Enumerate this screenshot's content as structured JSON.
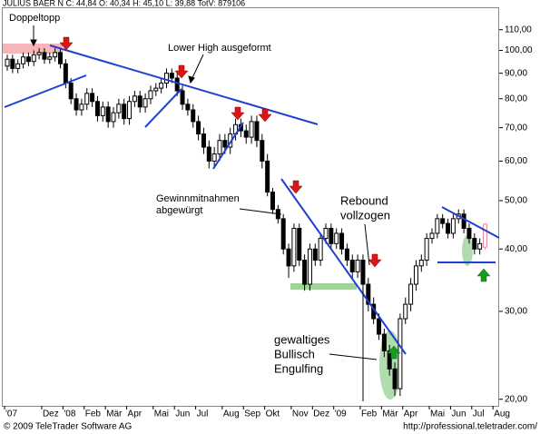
{
  "chart_data": {
    "type": "candlestick",
    "header": "JULIUS BAER N C: 44,84 O: 40,34 H: 45,10 L: 39,88 TotV: 879106",
    "footer_left": "© 2009 TeleTrader Software AG",
    "footer_right": "http://professional.teletrader.com/",
    "log_scale": true,
    "ylim": [
      19.4,
      122
    ],
    "yticks": [
      {
        "value": 20,
        "label": "20,00"
      },
      {
        "value": 30,
        "label": "30,00"
      },
      {
        "value": 40,
        "label": "40,00"
      },
      {
        "value": 50,
        "label": "50,00"
      },
      {
        "value": 60,
        "label": "60,00"
      },
      {
        "value": 70,
        "label": "70,00"
      },
      {
        "value": 80,
        "label": "80,00"
      },
      {
        "value": 90,
        "label": "90,00"
      },
      {
        "value": 100,
        "label": "100,00"
      },
      {
        "value": 110,
        "label": "110,00"
      }
    ],
    "up_color": "#ffffff",
    "down_color": "#000000",
    "last_color": "#e88ca0",
    "categories": [
      "'07",
      null,
      null,
      null,
      null,
      null,
      null,
      "Dez",
      null,
      null,
      null,
      "'08",
      null,
      null,
      null,
      "Feb",
      null,
      null,
      null,
      "Mär",
      null,
      null,
      null,
      "Apr",
      null,
      null,
      null,
      null,
      "Mai",
      null,
      null,
      null,
      "Jun",
      null,
      null,
      null,
      "Jul",
      null,
      null,
      null,
      null,
      "Aug",
      null,
      null,
      null,
      "Sep",
      null,
      null,
      null,
      "Okt",
      null,
      null,
      null,
      null,
      "Nov",
      null,
      null,
      null,
      "Dez",
      null,
      null,
      null,
      "'09",
      null,
      null,
      null,
      null,
      "Feb",
      null,
      null,
      null,
      "Mär",
      null,
      null,
      null,
      "Apr",
      null,
      null,
      null,
      null,
      "Mai",
      null,
      null,
      null,
      "Jun",
      null,
      null,
      null,
      "Jul",
      null,
      null,
      null,
      "Aug"
    ],
    "open": [
      93,
      96,
      92,
      94,
      97,
      95,
      98,
      99,
      96,
      97,
      99,
      94,
      86,
      80,
      76,
      78,
      82,
      79,
      74,
      77,
      72,
      75,
      78,
      73,
      79,
      81,
      77,
      80,
      83,
      84,
      86,
      90,
      88,
      83,
      78,
      76,
      72,
      68,
      64,
      60,
      62,
      66,
      64,
      68,
      71,
      69,
      67,
      72,
      66,
      60,
      52,
      48,
      46,
      40,
      37,
      44,
      38,
      34,
      40,
      38,
      42,
      44,
      41,
      43,
      40,
      38,
      36,
      38,
      34,
      31,
      29,
      27,
      25,
      23,
      21,
      29,
      31,
      34,
      37,
      38,
      42,
      43,
      46,
      45,
      43,
      46,
      47,
      44,
      42,
      40,
      40.34,
      null,
      null
    ],
    "high": [
      98,
      98,
      96,
      99,
      99,
      100,
      101,
      101,
      99,
      101,
      101,
      96,
      88,
      82,
      80,
      84,
      84,
      81,
      79,
      79,
      77,
      80,
      80,
      81,
      83,
      83,
      82,
      85,
      86,
      88,
      92,
      92,
      90,
      85,
      80,
      78,
      74,
      70,
      66,
      64,
      68,
      68,
      70,
      73,
      73,
      71,
      74,
      74,
      68,
      62,
      53,
      49,
      47,
      41,
      45,
      45,
      39,
      41,
      41,
      43,
      45,
      45,
      44,
      44,
      41,
      39,
      39,
      39,
      35,
      32,
      29.7,
      27.7,
      25.7,
      23.7,
      29.7,
      32,
      35,
      38,
      39,
      43,
      44,
      47,
      47,
      46,
      47,
      48,
      48,
      45,
      43,
      42,
      45.1,
      null,
      null
    ],
    "low": [
      91,
      90,
      90,
      92,
      93,
      93,
      96,
      94,
      94,
      95,
      92,
      84,
      78,
      74,
      74,
      76,
      77,
      72,
      72,
      70,
      70,
      73,
      71,
      71,
      77,
      75,
      75,
      78,
      81,
      82,
      84,
      86,
      81,
      76,
      74,
      70,
      66,
      62,
      58,
      58,
      60,
      62,
      62,
      66,
      67,
      65,
      65,
      64,
      58,
      51,
      47,
      45,
      39,
      35,
      36,
      37,
      33,
      33,
      37,
      37,
      41,
      40,
      40,
      39,
      37,
      35,
      35,
      33,
      30,
      28.3,
      26.3,
      24.3,
      22.3,
      20.3,
      20.3,
      28.3,
      30,
      33,
      36,
      37,
      41,
      42,
      44,
      42,
      42,
      45,
      43,
      41,
      39,
      39,
      39.88,
      null,
      null
    ],
    "close": [
      96,
      92,
      94,
      97,
      95,
      98,
      99,
      96,
      97,
      99,
      94,
      86,
      80,
      76,
      78,
      82,
      79,
      74,
      77,
      72,
      75,
      78,
      73,
      79,
      81,
      77,
      80,
      83,
      84,
      86,
      90,
      88,
      83,
      78,
      76,
      72,
      68,
      64,
      60,
      62,
      66,
      64,
      68,
      71,
      69,
      67,
      72,
      66,
      60,
      52,
      48,
      46,
      40,
      37,
      44,
      38,
      34,
      40,
      38,
      42,
      44,
      41,
      43,
      40,
      38,
      36,
      38,
      34,
      31,
      29,
      27,
      25,
      23,
      21,
      29,
      31,
      34,
      37,
      38,
      42,
      43,
      46,
      45,
      43,
      46,
      47,
      44,
      42,
      40,
      41,
      44.84,
      null,
      null
    ],
    "annotations": [
      [
        "Doppeltopp"
      ],
      [
        "Lower High ausgeformt"
      ],
      [
        "Gewinnmitnahmen",
        "abgewürgt"
      ],
      [
        "Rebound",
        "vollzogen"
      ],
      [
        "gewaltiges",
        "Bullisch",
        "Engulfing"
      ]
    ]
  }
}
